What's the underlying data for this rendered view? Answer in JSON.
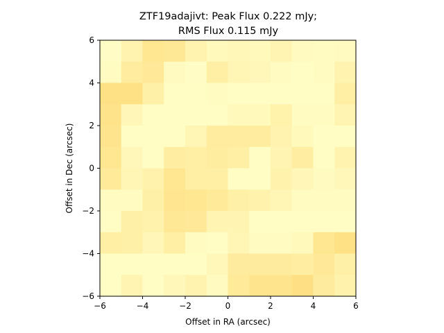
{
  "chart_data": {
    "type": "heatmap",
    "title_line1": "ZTF19adajivt: Peak Flux 0.222 mJy;",
    "title_line2": "RMS Flux 0.115 mJy",
    "xlabel": "Offset in RA (arcsec)",
    "ylabel": "Offset in Dec (arcsec)",
    "xlim": [
      -6,
      6
    ],
    "ylim": [
      -6,
      6
    ],
    "xticks": [
      -6,
      -4,
      -2,
      0,
      2,
      4,
      6
    ],
    "yticks": [
      -6,
      -4,
      -2,
      0,
      2,
      4,
      6
    ],
    "xtick_labels": [
      "−6",
      "−4",
      "−2",
      "0",
      "2",
      "4",
      "6"
    ],
    "ytick_labels": [
      "−6",
      "−4",
      "−2",
      "0",
      "2",
      "4",
      "6"
    ],
    "colormap": [
      "#ffffcc",
      "#ffeda0",
      "#fed976",
      "#feb24c"
    ],
    "grid": false,
    "rows_top_to_bottom": [
      [
        0.05,
        0.22,
        0.45,
        0.42,
        0.22,
        0.12,
        0.15,
        0.12,
        0.2,
        0.1,
        0.08,
        0.1
      ],
      [
        0.08,
        0.35,
        0.4,
        0.1,
        0.05,
        0.3,
        0.18,
        0.14,
        0.08,
        0.06,
        0.08,
        0.22
      ],
      [
        0.55,
        0.55,
        0.28,
        0.06,
        0.06,
        0.08,
        0.06,
        0.06,
        0.06,
        0.06,
        0.06,
        0.3
      ],
      [
        0.5,
        0.16,
        0.06,
        0.06,
        0.06,
        0.06,
        0.12,
        0.12,
        0.25,
        0.08,
        0.08,
        0.2
      ],
      [
        0.48,
        0.06,
        0.06,
        0.06,
        0.18,
        0.35,
        0.35,
        0.35,
        0.22,
        0.12,
        0.06,
        0.06
      ],
      [
        0.45,
        0.14,
        0.06,
        0.32,
        0.3,
        0.34,
        0.3,
        0.06,
        0.2,
        0.32,
        0.06,
        0.22
      ],
      [
        0.38,
        0.18,
        0.24,
        0.45,
        0.3,
        0.3,
        0.06,
        0.06,
        0.24,
        0.16,
        0.1,
        0.14
      ],
      [
        0.08,
        0.08,
        0.28,
        0.46,
        0.45,
        0.38,
        0.28,
        0.24,
        0.18,
        0.08,
        0.08,
        0.08
      ],
      [
        0.06,
        0.28,
        0.24,
        0.42,
        0.4,
        0.2,
        0.2,
        0.06,
        0.06,
        0.06,
        0.06,
        0.06
      ],
      [
        0.3,
        0.28,
        0.16,
        0.3,
        0.08,
        0.06,
        0.18,
        0.08,
        0.08,
        0.12,
        0.45,
        0.55
      ],
      [
        0.06,
        0.06,
        0.06,
        0.06,
        0.06,
        0.14,
        0.36,
        0.36,
        0.36,
        0.32,
        0.4,
        0.28
      ],
      [
        0.06,
        0.2,
        0.06,
        0.14,
        0.22,
        0.1,
        0.38,
        0.48,
        0.48,
        0.56,
        0.36,
        0.24
      ]
    ]
  }
}
